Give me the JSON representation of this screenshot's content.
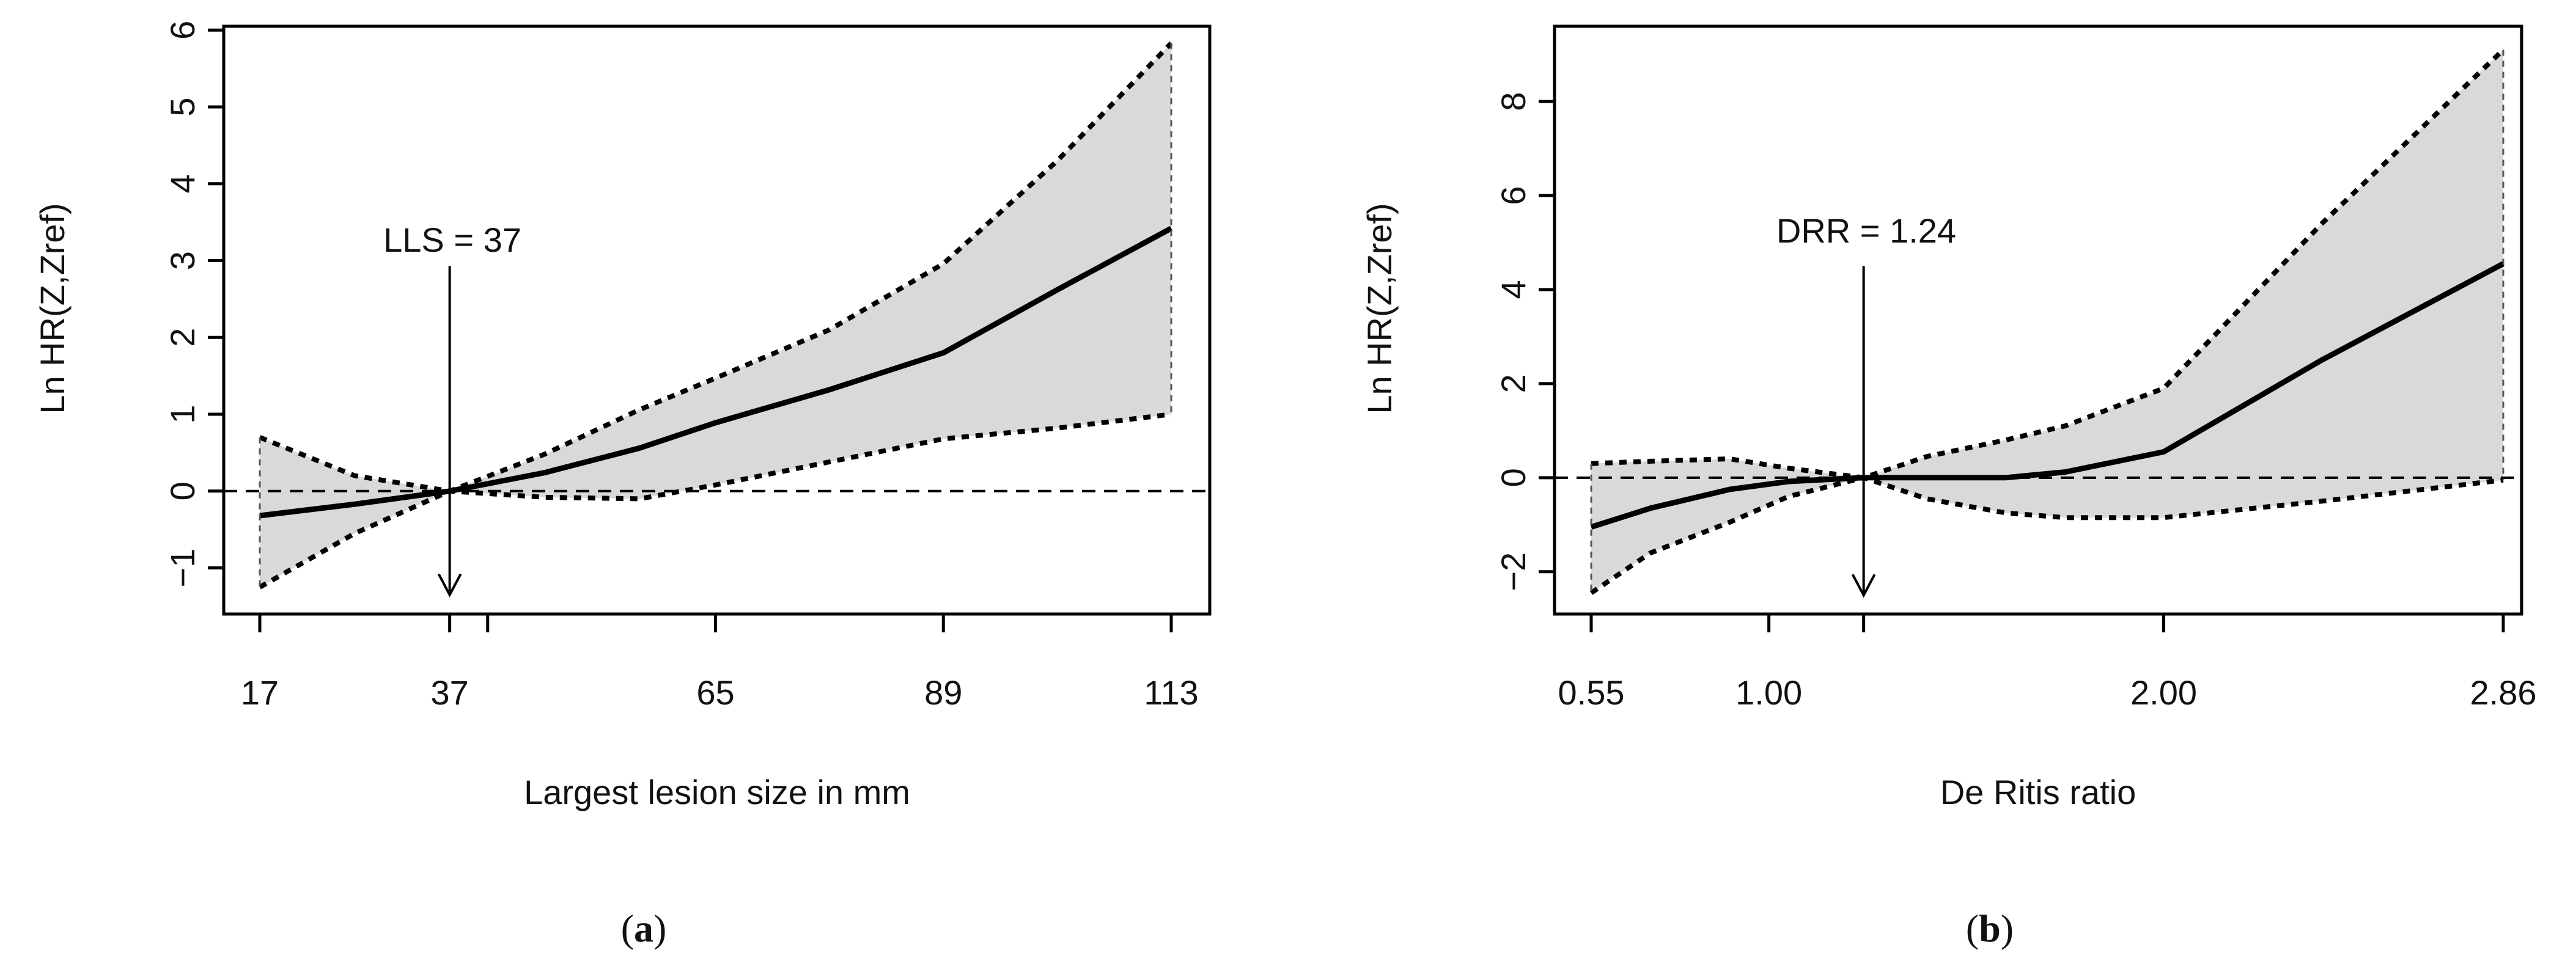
{
  "colors": {
    "band_fill": "#d9d9d9",
    "line": "#000000",
    "text": "#111111"
  },
  "chart_data": [
    {
      "type": "line",
      "panel_label": "a",
      "ylabel": "Ln HR(Z,Zref)",
      "xlabel": "Largest lesion size in mm",
      "xlim": [
        17,
        113
      ],
      "ylim": [
        -1.6,
        6.05
      ],
      "yticks": [
        -1,
        0,
        1,
        2,
        3,
        4,
        5,
        6
      ],
      "ytick_labels": [
        "−1",
        "0",
        "1",
        "2",
        "3",
        "4",
        "5",
        "6"
      ],
      "xticks": [
        17,
        37,
        65,
        89,
        113
      ],
      "xtick_labels": [
        "17",
        "37",
        "65",
        "89",
        "113"
      ],
      "extra_ticks": [
        41
      ],
      "reference_line_y": 0,
      "annotation": {
        "text": "LLS = 37",
        "x": 37,
        "arrow_from_y": 2.93,
        "arrow_to_y": -1.35
      },
      "series": [
        {
          "name": "Ln HR estimate",
          "style": "solid",
          "x": [
            17,
            27,
            37,
            47,
            57,
            65,
            77,
            89,
            101,
            113
          ],
          "y": [
            -0.32,
            -0.17,
            0.0,
            0.24,
            0.56,
            0.89,
            1.32,
            1.8,
            2.62,
            3.42
          ]
        },
        {
          "name": "Upper 95% CI",
          "style": "dotted",
          "x": [
            17,
            27,
            37,
            47,
            57,
            65,
            77,
            89,
            101,
            113
          ],
          "y": [
            0.7,
            0.2,
            0.0,
            0.48,
            1.06,
            1.47,
            2.1,
            2.96,
            4.3,
            5.83
          ]
        },
        {
          "name": "Lower 95% CI",
          "style": "dotted",
          "x": [
            17,
            27,
            37,
            47,
            57,
            65,
            77,
            89,
            101,
            113
          ],
          "y": [
            -1.25,
            -0.55,
            0.0,
            -0.08,
            -0.1,
            0.08,
            0.38,
            0.68,
            0.82,
            1.0
          ]
        }
      ]
    },
    {
      "type": "line",
      "panel_label": "b",
      "ylabel": "Ln HR(Z,Zref)",
      "xlabel": "De Ritis ratio",
      "xlim": [
        0.55,
        2.86
      ],
      "ylim": [
        -2.9,
        9.6
      ],
      "yticks": [
        -2,
        0,
        2,
        4,
        6,
        8
      ],
      "ytick_labels": [
        "−2",
        "0",
        "2",
        "4",
        "6",
        "8"
      ],
      "xticks": [
        0.55,
        1.0,
        2.0,
        2.86
      ],
      "xtick_labels": [
        "0.55",
        "1.00",
        "2.00",
        "2.86"
      ],
      "extra_ticks": [
        1.24
      ],
      "reference_line_y": 0,
      "annotation": {
        "text": "DRR = 1.24",
        "x": 1.24,
        "arrow_from_y": 4.5,
        "arrow_to_y": -2.5
      },
      "series": [
        {
          "name": "Ln HR estimate",
          "style": "solid",
          "x": [
            0.55,
            0.7,
            0.9,
            1.05,
            1.24,
            1.4,
            1.6,
            1.75,
            2.0,
            2.4,
            2.86
          ],
          "y": [
            -1.05,
            -0.65,
            -0.25,
            -0.08,
            0.0,
            0.0,
            0.0,
            0.12,
            0.55,
            2.5,
            4.55
          ]
        },
        {
          "name": "Upper 95% CI",
          "style": "dotted",
          "x": [
            0.55,
            0.7,
            0.9,
            1.05,
            1.24,
            1.4,
            1.6,
            1.75,
            2.0,
            2.4,
            2.86
          ],
          "y": [
            0.3,
            0.35,
            0.4,
            0.2,
            0.0,
            0.45,
            0.8,
            1.1,
            1.9,
            5.4,
            9.1
          ]
        },
        {
          "name": "Lower 95% CI",
          "style": "dotted",
          "x": [
            0.55,
            0.7,
            0.9,
            1.05,
            1.24,
            1.4,
            1.6,
            1.75,
            2.0,
            2.4,
            2.86
          ],
          "y": [
            -2.45,
            -1.6,
            -0.95,
            -0.4,
            0.0,
            -0.45,
            -0.75,
            -0.85,
            -0.85,
            -0.5,
            -0.05
          ]
        }
      ]
    }
  ]
}
